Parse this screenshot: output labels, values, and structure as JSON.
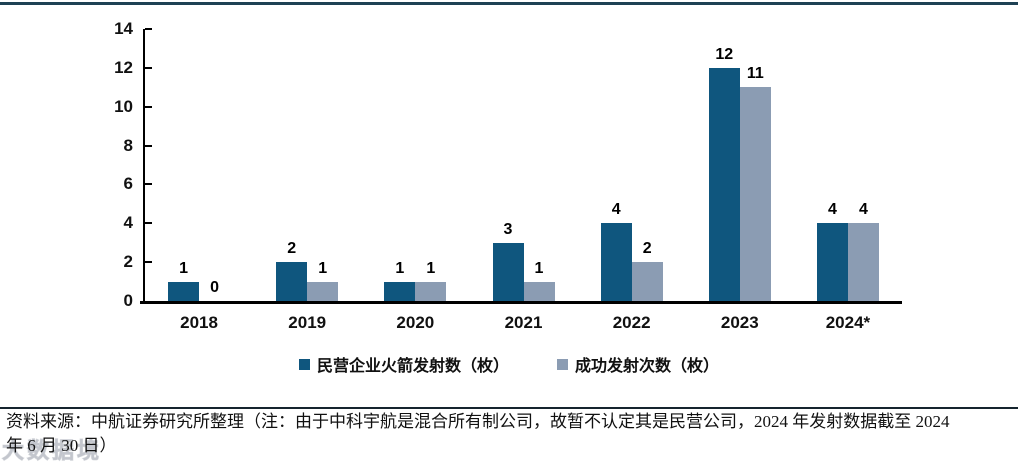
{
  "page": {
    "background": "#ffffff",
    "top_border_color": "#1e4154"
  },
  "chart_data": {
    "type": "bar",
    "title": "",
    "categories": [
      "2018",
      "2019",
      "2020",
      "2021",
      "2022",
      "2023",
      "2024*"
    ],
    "series": [
      {
        "name": "民营企业火箭发射数（枚）",
        "color": "#0f567e",
        "values": [
          1,
          2,
          1,
          3,
          4,
          12,
          4
        ]
      },
      {
        "name": "成功发射次数（枚）",
        "color": "#8b9cb3",
        "values": [
          0,
          1,
          1,
          1,
          2,
          11,
          4
        ]
      }
    ],
    "ylim": [
      0,
      14
    ],
    "ytick_step": 2,
    "yticks": [
      0,
      2,
      4,
      6,
      8,
      10,
      12,
      14
    ],
    "grid": false,
    "data_labels": true,
    "legend_position": "bottom",
    "axis_color": "#000000"
  },
  "footer": {
    "line1": "资料来源：中航证券研究所整理（注：由于中科宇航是混合所有制公司，故暂不认定其是民营公司，2024 年发射数据截至 2024",
    "line2": "年 6 月 30 日）"
  },
  "watermark": {
    "text": "大数据境"
  }
}
